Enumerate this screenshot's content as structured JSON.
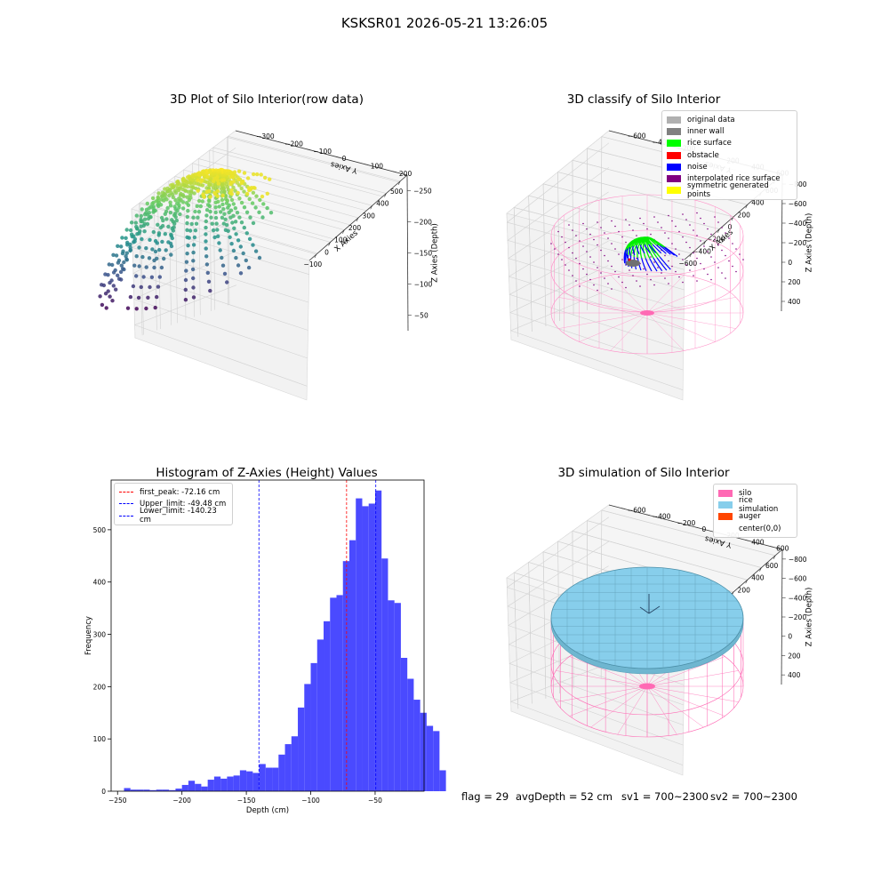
{
  "figure_title": "KSKSR01 2026-05-21 13:26:05",
  "status_line": {
    "flag": "flag = 29",
    "avg_depth": "avgDepth = 52 cm",
    "sv1": "sv1 = 700~2300",
    "sv2": "sv2 = 700~2300"
  },
  "chart_data": [
    {
      "type": "scatter",
      "projection": "3d",
      "title": "3D Plot of Silo Interior(row data)",
      "xlabel": "X Axies",
      "ylabel": "Y Axies",
      "zlabel": "Z Axies (Depth)",
      "xticks": [
        -100,
        0,
        100,
        200,
        300,
        400,
        500
      ],
      "yticks": [
        -300,
        -200,
        -100,
        0,
        100,
        200
      ],
      "zticks": [
        -250,
        -200,
        -150,
        -100,
        -50
      ],
      "colormap": "viridis",
      "xlim": [
        -150,
        500
      ],
      "ylim": [
        -330,
        260
      ],
      "zlim": [
        -270,
        -20
      ]
    },
    {
      "type": "scatter",
      "projection": "3d",
      "title": "3D classify of Silo Interior",
      "xlabel": "X Axies",
      "ylabel": "Y Axies",
      "zlabel": "Z Axies (Depth)",
      "xticks": [
        -600,
        -400,
        -200,
        0,
        200,
        400,
        600
      ],
      "yticks": [
        -600,
        -400,
        -200,
        0,
        200,
        400,
        600
      ],
      "zticks": [
        -800,
        -600,
        -400,
        -200,
        0,
        200,
        400
      ],
      "legend": [
        {
          "label": "original data",
          "color": "#b0b0b0"
        },
        {
          "label": "inner wall",
          "color": "#808080"
        },
        {
          "label": "rice surface",
          "color": "#00ff00"
        },
        {
          "label": "obstacle",
          "color": "#ff0000"
        },
        {
          "label": "noise",
          "color": "#0000ff"
        },
        {
          "label": "interpolated rice surface",
          "color": "#800080"
        },
        {
          "label": "symmetric generated points",
          "color": "#ffff00"
        }
      ],
      "legend_position": "top-right"
    },
    {
      "type": "bar",
      "title": "Histogram of Z-Axies (Height) Values",
      "xlabel": "Depth (cm)",
      "ylabel": "Frequency",
      "xlim": [
        -255,
        -12
      ],
      "ylim": [
        0,
        595
      ],
      "xticks": [
        -250,
        -200,
        -150,
        -100,
        -50
      ],
      "yticks": [
        0,
        100,
        200,
        300,
        400,
        500
      ],
      "bin_start": -245,
      "bin_width": 5,
      "bar_color": "#4a4aff",
      "values": [
        6,
        3,
        3,
        3,
        2,
        3,
        3,
        2,
        5,
        12,
        20,
        14,
        9,
        22,
        28,
        24,
        28,
        30,
        40,
        38,
        35,
        52,
        45,
        45,
        70,
        90,
        105,
        160,
        205,
        245,
        290,
        325,
        370,
        375,
        440,
        480,
        560,
        545,
        550,
        575,
        445,
        365,
        360,
        255,
        215,
        175,
        150,
        125,
        115,
        40
      ],
      "vlines": [
        {
          "label": "first_peak: -72.16 cm",
          "x": -72.16,
          "color": "#ff0000"
        },
        {
          "label": "Upper_limit: -49.48 cm",
          "x": -49.48,
          "color": "#0000ff"
        },
        {
          "label": "Lower_limit: -140.23 cm",
          "x": -140.23,
          "color": "#0000ff"
        }
      ],
      "legend_position": "top-left"
    },
    {
      "type": "surface",
      "projection": "3d",
      "title": "3D simulation of Silo Interior",
      "xlabel": "X Axies",
      "ylabel": "Y Axies",
      "zlabel": "Z Axies (Depth)",
      "xticks": [
        -600,
        -400,
        -200,
        0,
        200,
        400,
        600
      ],
      "yticks": [
        -600,
        -400,
        -200,
        0,
        200,
        400,
        600
      ],
      "zticks": [
        -800,
        -600,
        -400,
        -200,
        0,
        200,
        400
      ],
      "legend": [
        {
          "label": "silo",
          "color": "#ff69b4"
        },
        {
          "label": "rice simulation",
          "color": "#87ceeb"
        },
        {
          "label": "auger",
          "color": "#ff4500"
        },
        {
          "label": "center(0,0)",
          "color": "#ffffff"
        }
      ],
      "legend_position": "top-right"
    }
  ]
}
